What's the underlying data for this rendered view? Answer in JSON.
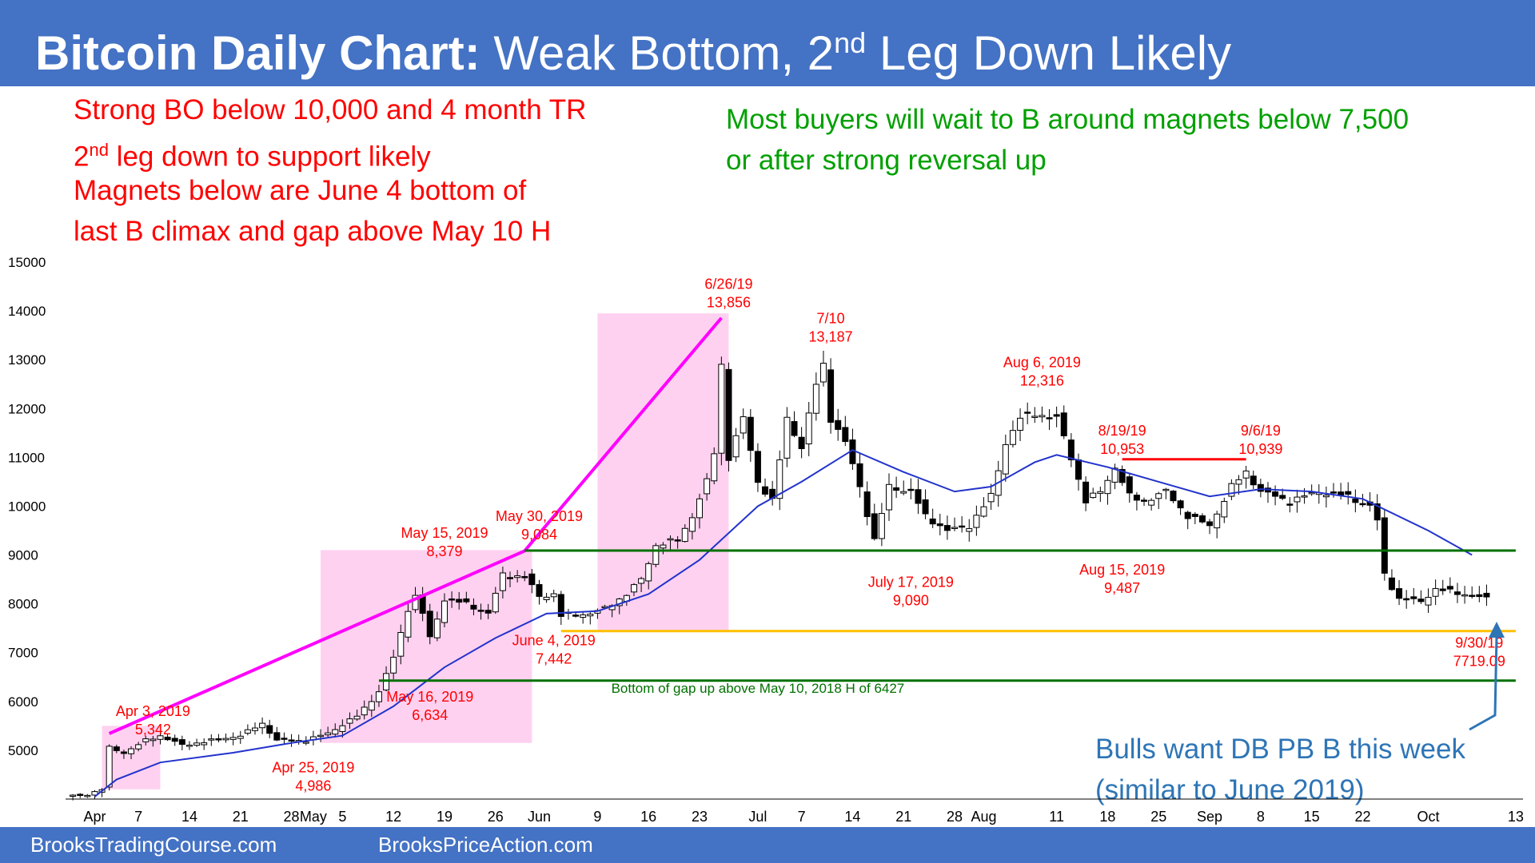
{
  "title": {
    "bold": "Bitcoin Daily Chart:",
    "rest_before": " Weak Bottom, 2",
    "sup": "nd",
    "rest_after": " Leg Down Likely"
  },
  "notes": {
    "red_lines": [
      "Strong BO below 10,000 and 4 month TR",
      "leg down to support likely",
      "Magnets below are June 4 bottom of",
      "last B climax and gap above May 10 H"
    ],
    "red_line2_prefix": "2",
    "red_line2_sup": "nd",
    "green_lines": [
      "Most buyers will wait to B around magnets below 7,500",
      "or after strong reversal up"
    ],
    "blue_lines": [
      "Bulls want DB PB B this week",
      "(similar to June 2019)"
    ]
  },
  "footer": {
    "left": "BrooksTradingCourse.com",
    "right": "BrooksPriceAction.com"
  },
  "colors": {
    "header": "#4472c4",
    "up": "#ffffff",
    "down": "#000000",
    "ema": "#2233cc",
    "magenta": "#ff00ff",
    "pink_box": "#ffd1f0",
    "green_line": "#007000",
    "orange_line": "#ffc000",
    "red_line": "#ff0000",
    "annotation": "#ff0000"
  },
  "chart_data": {
    "type": "candlestick",
    "ylim": [
      4000,
      15000
    ],
    "yticks": [
      5000,
      6000,
      7000,
      8000,
      9000,
      10000,
      11000,
      12000,
      13000,
      14000,
      15000
    ],
    "x_range": [
      "2019-03-28",
      "2019-10-14"
    ],
    "xticks": [
      {
        "date": "2019-04-01",
        "label": "Apr"
      },
      {
        "date": "2019-04-07",
        "label": "7"
      },
      {
        "date": "2019-04-14",
        "label": "14"
      },
      {
        "date": "2019-04-21",
        "label": "21"
      },
      {
        "date": "2019-04-28",
        "label": "28"
      },
      {
        "date": "2019-05-01",
        "label": "May"
      },
      {
        "date": "2019-05-05",
        "label": "5"
      },
      {
        "date": "2019-05-12",
        "label": "12"
      },
      {
        "date": "2019-05-19",
        "label": "19"
      },
      {
        "date": "2019-05-26",
        "label": "26"
      },
      {
        "date": "2019-06-01",
        "label": "Jun"
      },
      {
        "date": "2019-06-09",
        "label": "9"
      },
      {
        "date": "2019-06-16",
        "label": "16"
      },
      {
        "date": "2019-06-23",
        "label": "23"
      },
      {
        "date": "2019-07-01",
        "label": "Jul"
      },
      {
        "date": "2019-07-07",
        "label": "7"
      },
      {
        "date": "2019-07-14",
        "label": "14"
      },
      {
        "date": "2019-07-21",
        "label": "21"
      },
      {
        "date": "2019-07-28",
        "label": "28"
      },
      {
        "date": "2019-08-01",
        "label": "Aug"
      },
      {
        "date": "2019-08-11",
        "label": "11"
      },
      {
        "date": "2019-08-18",
        "label": "18"
      },
      {
        "date": "2019-08-25",
        "label": "25"
      },
      {
        "date": "2019-09-01",
        "label": "Sep"
      },
      {
        "date": "2019-09-08",
        "label": "8"
      },
      {
        "date": "2019-09-15",
        "label": "15"
      },
      {
        "date": "2019-09-22",
        "label": "22"
      },
      {
        "date": "2019-10-01",
        "label": "Oct"
      },
      {
        "date": "2019-10-13",
        "label": "13"
      }
    ],
    "close_path": [
      [
        "2019-03-28",
        4050
      ],
      [
        "2019-03-31",
        4100
      ],
      [
        "2019-04-02",
        4200
      ],
      [
        "2019-04-03",
        5050
      ],
      [
        "2019-04-05",
        4950
      ],
      [
        "2019-04-08",
        5200
      ],
      [
        "2019-04-10",
        5300
      ],
      [
        "2019-04-13",
        5100
      ],
      [
        "2019-04-17",
        5200
      ],
      [
        "2019-04-21",
        5300
      ],
      [
        "2019-04-24",
        5550
      ],
      [
        "2019-04-26",
        5200
      ],
      [
        "2019-04-30",
        5200
      ],
      [
        "2019-05-03",
        5350
      ],
      [
        "2019-05-07",
        5700
      ],
      [
        "2019-05-10",
        6200
      ],
      [
        "2019-05-12",
        6900
      ],
      [
        "2019-05-14",
        7900
      ],
      [
        "2019-05-15",
        8150
      ],
      [
        "2019-05-16",
        7800
      ],
      [
        "2019-05-17",
        7300
      ],
      [
        "2019-05-19",
        8100
      ],
      [
        "2019-05-22",
        8000
      ],
      [
        "2019-05-25",
        7800
      ],
      [
        "2019-05-27",
        8600
      ],
      [
        "2019-05-30",
        8550
      ],
      [
        "2019-06-01",
        8150
      ],
      [
        "2019-06-03",
        8200
      ],
      [
        "2019-06-04",
        7750
      ],
      [
        "2019-06-08",
        7800
      ],
      [
        "2019-06-10",
        7900
      ],
      [
        "2019-06-13",
        8200
      ],
      [
        "2019-06-15",
        8500
      ],
      [
        "2019-06-17",
        9200
      ],
      [
        "2019-06-20",
        9300
      ],
      [
        "2019-06-22",
        9800
      ],
      [
        "2019-06-24",
        10500
      ],
      [
        "2019-06-25",
        11100
      ],
      [
        "2019-06-26",
        12900
      ],
      [
        "2019-06-27",
        11000
      ],
      [
        "2019-06-29",
        11800
      ],
      [
        "2019-07-01",
        10500
      ],
      [
        "2019-07-03",
        10100
      ],
      [
        "2019-07-05",
        11800
      ],
      [
        "2019-07-07",
        11200
      ],
      [
        "2019-07-09",
        12500
      ],
      [
        "2019-07-10",
        12900
      ],
      [
        "2019-07-11",
        11800
      ],
      [
        "2019-07-13",
        11300
      ],
      [
        "2019-07-15",
        10400
      ],
      [
        "2019-07-17",
        9300
      ],
      [
        "2019-07-19",
        10400
      ],
      [
        "2019-07-22",
        10300
      ],
      [
        "2019-07-24",
        9800
      ],
      [
        "2019-07-27",
        9500
      ],
      [
        "2019-07-30",
        9600
      ],
      [
        "2019-08-02",
        10200
      ],
      [
        "2019-08-04",
        11300
      ],
      [
        "2019-08-06",
        11800
      ],
      [
        "2019-08-08",
        11900
      ],
      [
        "2019-08-11",
        11800
      ],
      [
        "2019-08-13",
        11000
      ],
      [
        "2019-08-15",
        10100
      ],
      [
        "2019-08-17",
        10300
      ],
      [
        "2019-08-19",
        10800
      ],
      [
        "2019-08-21",
        10200
      ],
      [
        "2019-08-23",
        10100
      ],
      [
        "2019-08-26",
        10300
      ],
      [
        "2019-08-29",
        9800
      ],
      [
        "2019-09-01",
        9600
      ],
      [
        "2019-09-04",
        10400
      ],
      [
        "2019-09-06",
        10700
      ],
      [
        "2019-09-08",
        10300
      ],
      [
        "2019-09-12",
        10100
      ],
      [
        "2019-09-16",
        10300
      ],
      [
        "2019-09-20",
        10200
      ],
      [
        "2019-09-23",
        10000
      ],
      [
        "2019-09-24",
        9700
      ],
      [
        "2019-09-25",
        8600
      ],
      [
        "2019-09-27",
        8100
      ],
      [
        "2019-09-30",
        8050
      ],
      [
        "2019-10-02",
        8300
      ],
      [
        "2019-10-06",
        8200
      ],
      [
        "2019-10-09",
        8100
      ]
    ],
    "ema_path": [
      [
        "2019-04-01",
        4050
      ],
      [
        "2019-04-04",
        4400
      ],
      [
        "2019-04-10",
        4750
      ],
      [
        "2019-04-20",
        4950
      ],
      [
        "2019-04-28",
        5150
      ],
      [
        "2019-05-05",
        5300
      ],
      [
        "2019-05-12",
        5900
      ],
      [
        "2019-05-19",
        6700
      ],
      [
        "2019-05-26",
        7300
      ],
      [
        "2019-06-02",
        7800
      ],
      [
        "2019-06-09",
        7850
      ],
      [
        "2019-06-16",
        8200
      ],
      [
        "2019-06-23",
        8900
      ],
      [
        "2019-07-01",
        10000
      ],
      [
        "2019-07-07",
        10500
      ],
      [
        "2019-07-14",
        11150
      ],
      [
        "2019-07-21",
        10700
      ],
      [
        "2019-07-28",
        10300
      ],
      [
        "2019-08-02",
        10400
      ],
      [
        "2019-08-08",
        10900
      ],
      [
        "2019-08-11",
        11050
      ],
      [
        "2019-08-18",
        10800
      ],
      [
        "2019-08-25",
        10500
      ],
      [
        "2019-09-01",
        10200
      ],
      [
        "2019-09-08",
        10350
      ],
      [
        "2019-09-15",
        10300
      ],
      [
        "2019-09-22",
        10150
      ],
      [
        "2019-10-01",
        9500
      ],
      [
        "2019-10-07",
        9000
      ]
    ],
    "highlight_boxes": [
      {
        "from": "2019-04-02",
        "to": "2019-04-10",
        "low": 4200,
        "high": 5500
      },
      {
        "from": "2019-05-02",
        "to": "2019-05-31",
        "low": 5150,
        "high": 9100
      },
      {
        "from": "2019-06-09",
        "to": "2019-06-27",
        "low": 7450,
        "high": 13950
      }
    ],
    "trend_line": [
      [
        "2019-04-03",
        5342
      ],
      [
        "2019-05-30",
        9084
      ],
      [
        "2019-06-26",
        13856
      ]
    ],
    "horizontal_lines": [
      {
        "from": "2019-05-30",
        "to": "2019-10-13",
        "value": 9090,
        "color": "green"
      },
      {
        "from": "2019-06-04",
        "to": "2019-10-13",
        "value": 7442,
        "color": "orange"
      },
      {
        "from": "2019-05-10",
        "to": "2019-10-13",
        "value": 6427,
        "color": "green"
      },
      {
        "from": "2019-08-20",
        "to": "2019-09-06",
        "value": 10960,
        "color": "red"
      }
    ],
    "labels": [
      {
        "date": "2019-04-09",
        "value": 5700,
        "lines": [
          "Apr 3, 2019",
          "5,342"
        ]
      },
      {
        "date": "2019-05-01",
        "value": 4550,
        "lines": [
          "Apr 25, 2019",
          "4,986"
        ]
      },
      {
        "date": "2019-05-17",
        "value": 6000,
        "lines": [
          "May 16, 2019",
          "6,634"
        ]
      },
      {
        "date": "2019-05-19",
        "value": 9350,
        "lines": [
          "May 15, 2019",
          "8,379"
        ]
      },
      {
        "date": "2019-06-01",
        "value": 9700,
        "lines": [
          "May 30, 2019",
          "9,084"
        ]
      },
      {
        "date": "2019-06-03",
        "value": 7150,
        "lines": [
          "June 4, 2019",
          "7,442"
        ]
      },
      {
        "date": "2019-06-27",
        "value": 14450,
        "lines": [
          "6/26/19",
          "13,856"
        ]
      },
      {
        "date": "2019-07-11",
        "value": 13750,
        "lines": [
          "7/10",
          "13,187"
        ]
      },
      {
        "date": "2019-07-22",
        "value": 8350,
        "lines": [
          "July 17, 2019",
          "9,090"
        ]
      },
      {
        "date": "2019-08-09",
        "value": 12850,
        "lines": [
          "Aug 6, 2019",
          "12,316"
        ]
      },
      {
        "date": "2019-08-20",
        "value": 8600,
        "lines": [
          "Aug 15, 2019",
          "9,487"
        ]
      },
      {
        "date": "2019-08-20",
        "value": 11450,
        "lines": [
          "8/19/19",
          "10,953"
        ]
      },
      {
        "date": "2019-09-08",
        "value": 11450,
        "lines": [
          "9/6/19",
          "10,939"
        ]
      },
      {
        "date": "2019-10-08",
        "value": 7100,
        "lines": [
          "9/30/19",
          "7719.09"
        ]
      }
    ],
    "gap_label": {
      "date": "2019-07-01",
      "value": 6180,
      "text": "Bottom of gap up above May 10, 2018 H of 6427"
    }
  }
}
